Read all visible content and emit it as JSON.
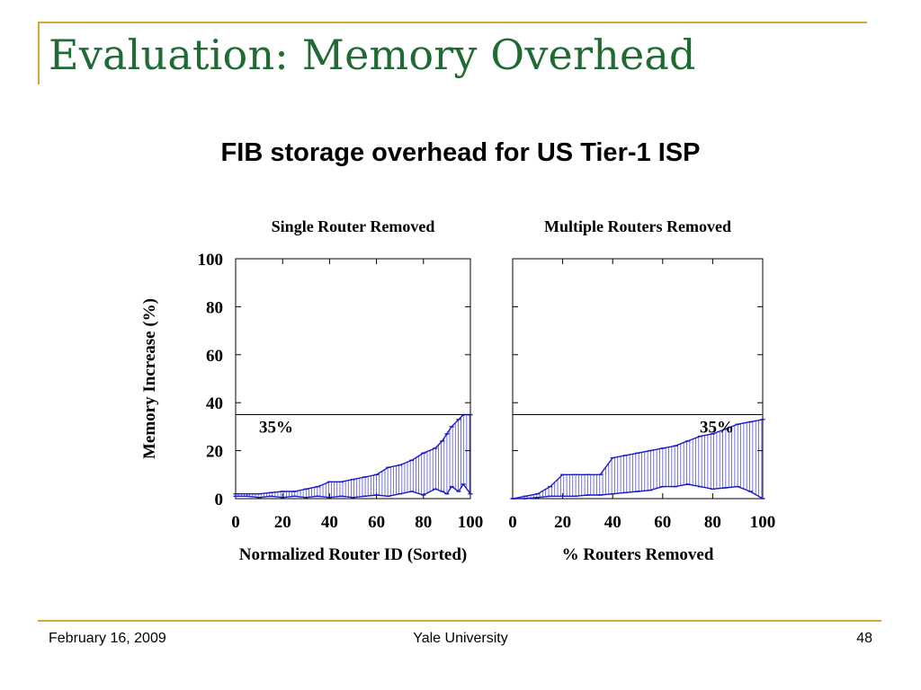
{
  "slide": {
    "title": "Evaluation: Memory Overhead",
    "subtitle": "FIB storage overhead for US Tier-1 ISP",
    "footer_date": "February 16, 2009",
    "footer_org": "Yale University",
    "footer_page": "48",
    "accent_color": "#d4a835",
    "title_color": "#1f6b33"
  },
  "chart_data": [
    {
      "type": "line",
      "title": "Single Router Removed",
      "xlabel": "Normalized Router ID (Sorted)",
      "ylabel": "Memory Increase (%)",
      "xlim": [
        0,
        100
      ],
      "ylim": [
        0,
        100
      ],
      "xticks": [
        "0",
        "20",
        "40",
        "60",
        "80",
        "100"
      ],
      "yticks": [
        "0",
        "20",
        "40",
        "60",
        "80",
        "100"
      ],
      "reference_line": {
        "y": 35,
        "label": "35%"
      },
      "series_color": "#1a1acc",
      "series": [
        {
          "x": [
            0,
            5,
            10,
            15,
            20,
            25,
            30,
            35,
            40,
            45,
            50,
            55,
            60,
            65,
            70,
            75,
            80,
            85,
            88,
            90,
            92,
            95,
            97,
            100
          ],
          "values": [
            1,
            1,
            0.5,
            1,
            0.5,
            1,
            0.5,
            1,
            0.5,
            1,
            0.5,
            1,
            1.5,
            1,
            2,
            3,
            1.5,
            4,
            3,
            2,
            5,
            3,
            6,
            2
          ]
        },
        {
          "x": [
            0,
            5,
            10,
            15,
            20,
            25,
            30,
            35,
            40,
            45,
            50,
            55,
            60,
            65,
            70,
            75,
            80,
            85,
            88,
            90,
            92,
            95,
            97,
            100
          ],
          "values": [
            2,
            2,
            2,
            2.5,
            3,
            3,
            4,
            5,
            7,
            7,
            8,
            9,
            10,
            13,
            14,
            16,
            19,
            21,
            24,
            27,
            30,
            33,
            35,
            35
          ]
        }
      ]
    },
    {
      "type": "line",
      "title": "Multiple Routers Removed",
      "xlabel": "% Routers Removed",
      "ylim": [
        0,
        100
      ],
      "xlim": [
        0,
        100
      ],
      "xticks": [
        "0",
        "20",
        "40",
        "60",
        "80",
        "100"
      ],
      "reference_line": {
        "y": 35,
        "label": "35%"
      },
      "series_color": "#1a1acc",
      "series": [
        {
          "x": [
            0,
            5,
            10,
            15,
            20,
            25,
            30,
            35,
            40,
            45,
            50,
            55,
            60,
            65,
            70,
            75,
            80,
            85,
            90,
            95,
            100
          ],
          "values": [
            0,
            0,
            0.5,
            1,
            1,
            1,
            1.5,
            1.5,
            2,
            2.5,
            3,
            3.5,
            5,
            5,
            6,
            5,
            4,
            4.5,
            5,
            3,
            0
          ]
        },
        {
          "x": [
            0,
            5,
            10,
            15,
            20,
            25,
            30,
            35,
            40,
            45,
            50,
            55,
            60,
            65,
            70,
            75,
            80,
            85,
            90,
            95,
            100
          ],
          "values": [
            0,
            1,
            2,
            5,
            10,
            10,
            10,
            10,
            17,
            18,
            19,
            20,
            21,
            22,
            24,
            26,
            27,
            29,
            31,
            32,
            33
          ]
        }
      ]
    }
  ]
}
